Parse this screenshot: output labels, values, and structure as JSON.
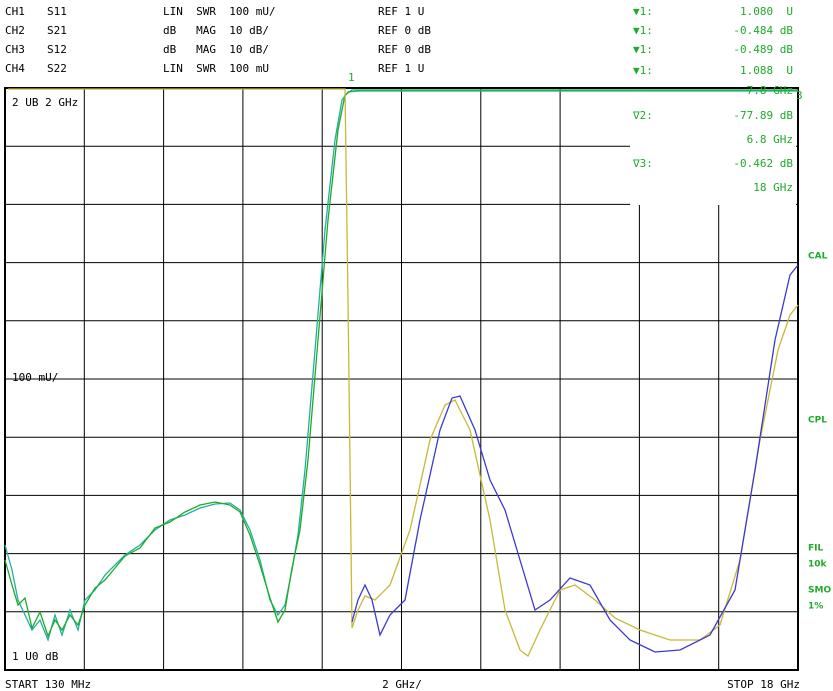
{
  "header": {
    "channels": [
      {
        "channel": "CH1",
        "param": "S11",
        "format": "LIN  SWR  100 mU/",
        "ref": "REF 1 U"
      },
      {
        "channel": "CH2",
        "param": "S21",
        "format": "dB   MAG  10 dB/",
        "ref": "REF 0 dB"
      },
      {
        "channel": "CH3",
        "param": "S12",
        "format": "dB   MAG  10 dB/",
        "ref": "REF 0 dB"
      },
      {
        "channel": "CH4",
        "param": "S22",
        "format": "LIN  SWR  100 mU",
        "ref": "REF 1 U"
      }
    ]
  },
  "markers": [
    {
      "label": "▼1:",
      "value": "1.080  U"
    },
    {
      "label": "▼1:",
      "value": "-0.484 dB"
    },
    {
      "label": "▼1:",
      "value": "-0.489 dB"
    },
    {
      "label": "▼1:",
      "value": "1.088  U"
    },
    {
      "label": "",
      "value": "7.8 GHz"
    },
    {
      "label": "∇2:",
      "value": "-77.89 dB"
    },
    {
      "label": "",
      "value": "6.8 GHz"
    },
    {
      "label": "∇3:",
      "value": "-0.462 dB"
    },
    {
      "label": "",
      "value": "18 GHz"
    }
  ],
  "plot": {
    "top_label": "2 UB 2 GHz",
    "mid_label": "100 mU/",
    "bottom_label": "1 U0 dB"
  },
  "side": [
    "CAL",
    "CPL",
    "FIL",
    "10k",
    "SMO",
    "1%"
  ],
  "footer": {
    "start": "START  130 MHz",
    "span": "2 GHz/",
    "stop": "STOP 18 GHz"
  }
}
